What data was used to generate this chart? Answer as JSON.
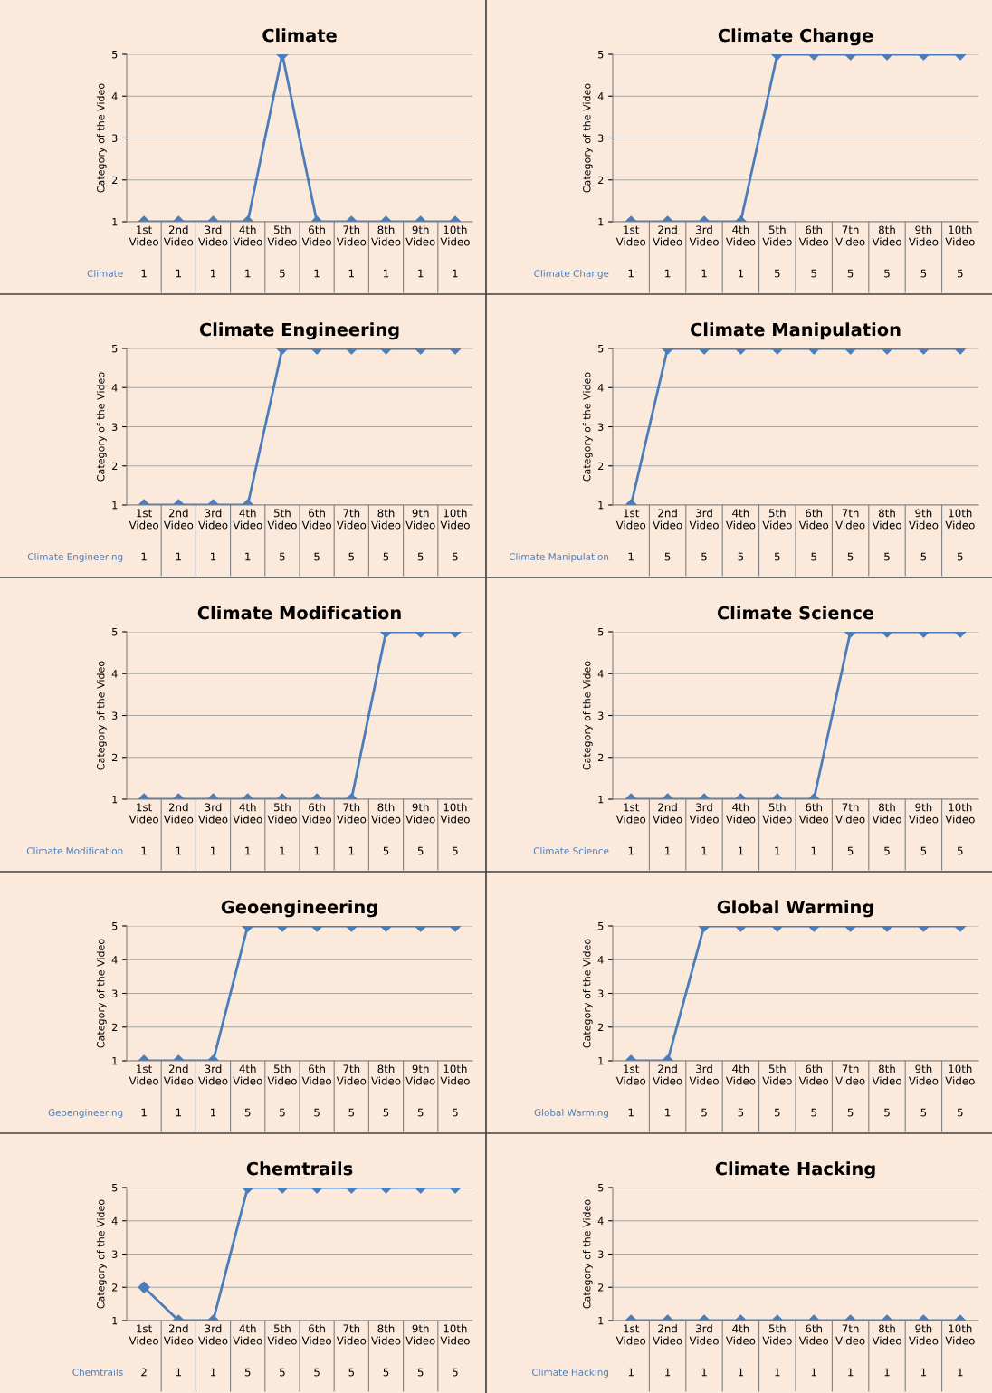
{
  "chart_data": [
    {
      "type": "line",
      "title": "Climate",
      "ylabel": "Category of the Video",
      "categories": [
        "1st Video",
        "2nd Video",
        "3rd Video",
        "4th Video",
        "5th Video",
        "6th Video",
        "7th Video",
        "8th Video",
        "9th Video",
        "10th Video"
      ],
      "series": [
        {
          "name": "Climate",
          "color": "#4a7ebb",
          "values": [
            1,
            1,
            1,
            1,
            5,
            1,
            1,
            1,
            1,
            1
          ]
        }
      ],
      "ylim": [
        1,
        5
      ],
      "yticks": [
        1,
        2,
        3,
        4,
        5
      ],
      "grid": "y",
      "marker": "diamond",
      "data_labels": true
    },
    {
      "type": "line",
      "title": "Climate Change",
      "ylabel": "Category of the Video",
      "categories": [
        "1st Video",
        "2nd Video",
        "3rd Video",
        "4th Video",
        "5th Video",
        "6th Video",
        "7th Video",
        "8th Video",
        "9th Video",
        "10th Video"
      ],
      "series": [
        {
          "name": "Climate Change",
          "color": "#4a7ebb",
          "values": [
            1,
            1,
            1,
            1,
            5,
            5,
            5,
            5,
            5,
            5
          ]
        }
      ],
      "ylim": [
        1,
        5
      ],
      "yticks": [
        1,
        2,
        3,
        4,
        5
      ],
      "grid": "y",
      "marker": "diamond",
      "data_labels": true
    },
    {
      "type": "line",
      "title": "Climate Engineering",
      "ylabel": "Category of the Video",
      "categories": [
        "1st Video",
        "2nd Video",
        "3rd Video",
        "4th Video",
        "5th Video",
        "6th Video",
        "7th Video",
        "8th Video",
        "9th Video",
        "10th Video"
      ],
      "series": [
        {
          "name": "Climate Engineering",
          "color": "#4a7ebb",
          "values": [
            1,
            1,
            1,
            1,
            5,
            5,
            5,
            5,
            5,
            5
          ]
        }
      ],
      "ylim": [
        1,
        5
      ],
      "yticks": [
        1,
        2,
        3,
        4,
        5
      ],
      "grid": "y",
      "marker": "diamond",
      "data_labels": true
    },
    {
      "type": "line",
      "title": "Climate Manipulation",
      "ylabel": "Category of the Video",
      "categories": [
        "1st Video",
        "2nd Video",
        "3rd Video",
        "4th Video",
        "5th Video",
        "6th Video",
        "7th Video",
        "8th Video",
        "9th Video",
        "10th Video"
      ],
      "series": [
        {
          "name": "Climate Manipulation",
          "color": "#4a7ebb",
          "values": [
            1,
            5,
            5,
            5,
            5,
            5,
            5,
            5,
            5,
            5
          ]
        }
      ],
      "ylim": [
        1,
        5
      ],
      "yticks": [
        1,
        2,
        3,
        4,
        5
      ],
      "grid": "y",
      "marker": "diamond",
      "data_labels": true
    },
    {
      "type": "line",
      "title": "Climate Modification",
      "ylabel": "Category of the Video",
      "categories": [
        "1st Video",
        "2nd Video",
        "3rd Video",
        "4th Video",
        "5th Video",
        "6th Video",
        "7th Video",
        "8th Video",
        "9th Video",
        "10th Video"
      ],
      "series": [
        {
          "name": "Climate Modification",
          "color": "#4a7ebb",
          "values": [
            1,
            1,
            1,
            1,
            1,
            1,
            1,
            5,
            5,
            5
          ]
        }
      ],
      "ylim": [
        1,
        5
      ],
      "yticks": [
        1,
        2,
        3,
        4,
        5
      ],
      "grid": "y",
      "marker": "diamond",
      "data_labels": true
    },
    {
      "type": "line",
      "title": "Climate Science",
      "ylabel": "Category of the Video",
      "categories": [
        "1st Video",
        "2nd Video",
        "3rd Video",
        "4th Video",
        "5th Video",
        "6th Video",
        "7th Video",
        "8th Video",
        "9th Video",
        "10th Video"
      ],
      "series": [
        {
          "name": "Climate Science",
          "color": "#4a7ebb",
          "values": [
            1,
            1,
            1,
            1,
            1,
            1,
            5,
            5,
            5,
            5
          ]
        }
      ],
      "ylim": [
        1,
        5
      ],
      "yticks": [
        1,
        2,
        3,
        4,
        5
      ],
      "grid": "y",
      "marker": "diamond",
      "data_labels": true
    },
    {
      "type": "line",
      "title": "Geoengineering",
      "ylabel": "Category of the Video",
      "categories": [
        "1st Video",
        "2nd Video",
        "3rd Video",
        "4th Video",
        "5th Video",
        "6th Video",
        "7th Video",
        "8th Video",
        "9th Video",
        "10th Video"
      ],
      "series": [
        {
          "name": "Geoengineering",
          "color": "#4a7ebb",
          "values": [
            1,
            1,
            1,
            5,
            5,
            5,
            5,
            5,
            5,
            5
          ]
        }
      ],
      "ylim": [
        1,
        5
      ],
      "yticks": [
        1,
        2,
        3,
        4,
        5
      ],
      "grid": "y",
      "marker": "diamond",
      "data_labels": true
    },
    {
      "type": "line",
      "title": "Global Warming",
      "ylabel": "Category of the Video",
      "categories": [
        "1st Video",
        "2nd Video",
        "3rd Video",
        "4th Video",
        "5th Video",
        "6th Video",
        "7th Video",
        "8th Video",
        "9th Video",
        "10th Video"
      ],
      "series": [
        {
          "name": "Global Warming",
          "color": "#4a7ebb",
          "values": [
            1,
            1,
            5,
            5,
            5,
            5,
            5,
            5,
            5,
            5
          ]
        }
      ],
      "ylim": [
        1,
        5
      ],
      "yticks": [
        1,
        2,
        3,
        4,
        5
      ],
      "grid": "y",
      "marker": "diamond",
      "data_labels": true
    },
    {
      "type": "line",
      "title": "Chemtrails",
      "ylabel": "Category of the Video",
      "categories": [
        "1st Video",
        "2nd Video",
        "3rd Video",
        "4th Video",
        "5th Video",
        "6th Video",
        "7th Video",
        "8th Video",
        "9th Video",
        "10th Video"
      ],
      "series": [
        {
          "name": "Chemtrails",
          "color": "#4a7ebb",
          "values": [
            2,
            1,
            1,
            5,
            5,
            5,
            5,
            5,
            5,
            5
          ]
        }
      ],
      "ylim": [
        1,
        5
      ],
      "yticks": [
        1,
        2,
        3,
        4,
        5
      ],
      "grid": "y",
      "marker": "diamond",
      "data_labels": true
    },
    {
      "type": "line",
      "title": "Climate Hacking",
      "ylabel": "Category of the Video",
      "categories": [
        "1st Video",
        "2nd Video",
        "3rd Video",
        "4th Video",
        "5th Video",
        "6th Video",
        "7th Video",
        "8th Video",
        "9th Video",
        "10th Video"
      ],
      "series": [
        {
          "name": "Climate Hacking",
          "color": "#4a7ebb",
          "values": [
            1,
            1,
            1,
            1,
            1,
            1,
            1,
            1,
            1,
            1
          ]
        }
      ],
      "ylim": [
        1,
        5
      ],
      "yticks": [
        1,
        2,
        3,
        4,
        5
      ],
      "grid": "y",
      "marker": "diamond",
      "data_labels": true
    }
  ]
}
